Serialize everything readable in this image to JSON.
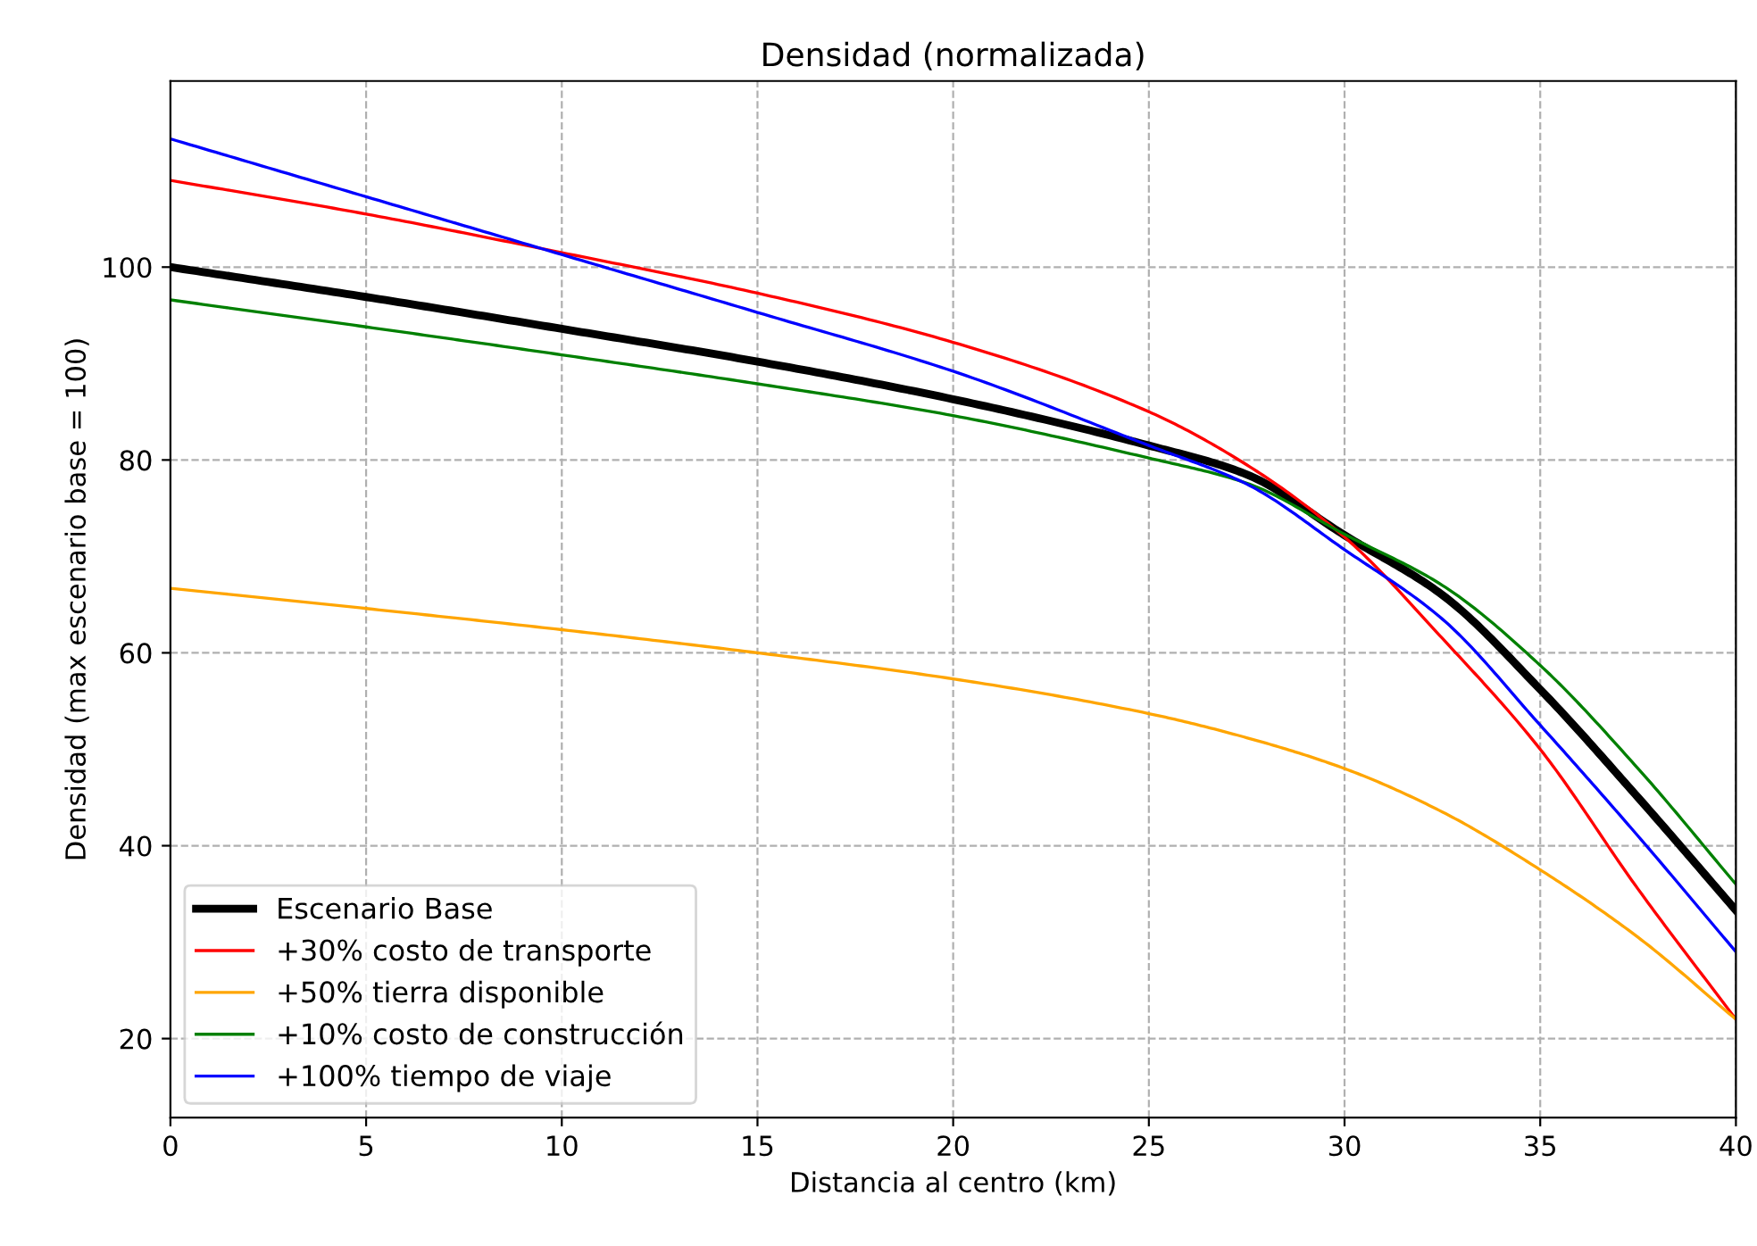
{
  "chart_data": {
    "type": "line",
    "title": "Densidad (normalizada)",
    "xlabel": "Distancia al centro (km)",
    "ylabel": "Densidad (max escenario base = 100)",
    "x": [
      0,
      5,
      10,
      15,
      20,
      25,
      27.5,
      30,
      32.5,
      35,
      37.5,
      40
    ],
    "series": [
      {
        "name": "Escenario Base",
        "color": "#000000",
        "values": [
          100,
          96.9,
          93.6,
          90.2,
          86.3,
          81.5,
          78.5,
          72.2,
          66,
          56.2,
          45,
          33.3
        ]
      },
      {
        "name": "+30% costo de transporte",
        "color": "#ff0000",
        "values": [
          109,
          105.5,
          101.5,
          97.3,
          92.2,
          85,
          79.5,
          72,
          61.5,
          50,
          35.5,
          22
        ]
      },
      {
        "name": "+50% tierra disponible",
        "color": "#ffa500",
        "values": [
          66.7,
          64.6,
          62.4,
          60,
          57.3,
          53.7,
          51.2,
          48,
          43.5,
          37.5,
          30.5,
          22
        ]
      },
      {
        "name": "+10% costo de construcción",
        "color": "#008000",
        "values": [
          96.6,
          93.8,
          90.9,
          87.9,
          84.6,
          80.2,
          77.6,
          72.3,
          67,
          58.7,
          48,
          36
        ]
      },
      {
        "name": "+100% tiempo de viaje",
        "color": "#0000ff",
        "values": [
          113.3,
          107.3,
          101.3,
          95.3,
          89.2,
          81.5,
          77.5,
          70.7,
          63.5,
          52.5,
          41,
          29
        ]
      }
    ],
    "xlim": [
      0,
      40
    ],
    "xticks": [
      0,
      5,
      10,
      15,
      20,
      25,
      30,
      35,
      40
    ],
    "ylim": [
      11.8,
      119.3
    ],
    "yticks": [
      20,
      40,
      60,
      80,
      100
    ],
    "grid": true,
    "legend": "bottom left",
    "line_style": "solid",
    "marker": "none"
  }
}
